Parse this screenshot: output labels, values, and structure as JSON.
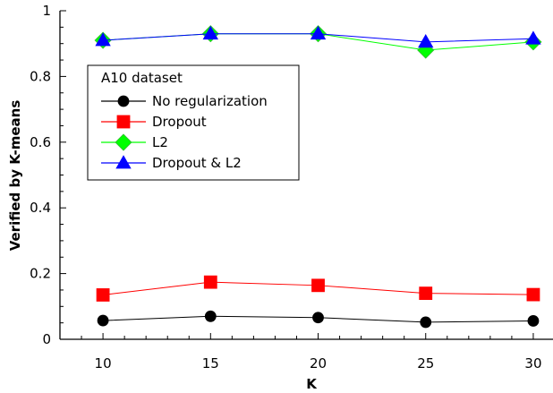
{
  "chart_data": {
    "type": "line",
    "title": "",
    "xlabel": "K",
    "ylabel": "Verified by K-means",
    "x": [
      10,
      15,
      20,
      25,
      30
    ],
    "xticks": [
      "10",
      "15",
      "20",
      "25",
      "30"
    ],
    "yticks": [
      "0",
      "0.2",
      "0.4",
      "0.6",
      "0.8",
      "1"
    ],
    "xlim": [
      8,
      31
    ],
    "ylim": [
      0,
      1
    ],
    "grid": false,
    "legend_title": "A10 dataset",
    "legend_position": "top-left",
    "series": [
      {
        "name": "No regularization",
        "color": "#000000",
        "marker": "circle",
        "values": [
          0.057,
          0.07,
          0.066,
          0.052,
          0.056
        ]
      },
      {
        "name": "Dropout",
        "color": "#ff0000",
        "marker": "square",
        "values": [
          0.135,
          0.174,
          0.164,
          0.14,
          0.136
        ]
      },
      {
        "name": "L2",
        "color": "#00ff00",
        "marker": "diamond",
        "values": [
          0.91,
          0.93,
          0.93,
          0.88,
          0.905
        ]
      },
      {
        "name": "Dropout & L2",
        "color": "#0000ff",
        "marker": "triangle",
        "values": [
          0.91,
          0.93,
          0.93,
          0.905,
          0.915
        ]
      }
    ]
  }
}
